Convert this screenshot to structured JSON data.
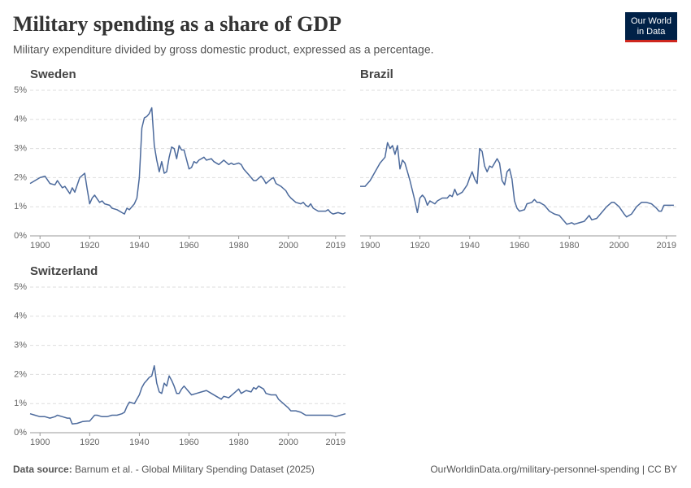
{
  "header": {
    "title": "Military spending as a share of GDP",
    "subtitle": "Military expenditure divided by gross domestic product, expressed as a percentage."
  },
  "logo": [
    "Our World",
    "in Data"
  ],
  "footer": {
    "source_label": "Data source:",
    "source": "Barnum et al. - Global Military Spending Dataset (2025)",
    "url": "OurWorldinData.org/military-personnel-spending | CC BY"
  },
  "chart_data": [
    {
      "type": "line",
      "title": "Sweden",
      "color": "#4c6a9c",
      "grid": true,
      "xlim": [
        1896,
        2023
      ],
      "xticks": [
        1900,
        1920,
        1940,
        1960,
        1980,
        2000,
        2019
      ],
      "ylim": [
        0,
        5
      ],
      "yticks": [
        {
          "value": 0,
          "label": "0%"
        },
        {
          "value": 1,
          "label": "1%"
        },
        {
          "value": 2,
          "label": "2%"
        },
        {
          "value": 3,
          "label": "3%"
        },
        {
          "value": 4,
          "label": "4%"
        },
        {
          "value": 5,
          "label": "5%"
        }
      ],
      "x": [
        1896,
        1898,
        1900,
        1902,
        1904,
        1906,
        1907,
        1909,
        1910,
        1912,
        1913,
        1914,
        1916,
        1918,
        1919,
        1920,
        1921,
        1922,
        1924,
        1925,
        1926,
        1928,
        1929,
        1931,
        1933,
        1934,
        1935,
        1936,
        1938,
        1939,
        1940,
        1941,
        1942,
        1943,
        1944,
        1945,
        1946,
        1947,
        1948,
        1949,
        1950,
        1951,
        1952,
        1953,
        1954,
        1955,
        1956,
        1957,
        1958,
        1960,
        1961,
        1962,
        1963,
        1964,
        1966,
        1967,
        1969,
        1970,
        1972,
        1974,
        1976,
        1977,
        1978,
        1980,
        1981,
        1982,
        1984,
        1986,
        1987,
        1989,
        1990,
        1991,
        1993,
        1994,
        1995,
        1997,
        1999,
        2000,
        2001,
        2003,
        2005,
        2006,
        2007,
        2008,
        2009,
        2010,
        2012,
        2013,
        2015,
        2016,
        2017,
        2018,
        2020,
        2022,
        2023
      ],
      "values": [
        1.8,
        1.9,
        2.0,
        2.05,
        1.8,
        1.75,
        1.9,
        1.65,
        1.7,
        1.45,
        1.65,
        1.5,
        2.0,
        2.15,
        1.6,
        1.1,
        1.3,
        1.4,
        1.15,
        1.2,
        1.1,
        1.05,
        0.95,
        0.9,
        0.8,
        0.75,
        0.95,
        0.9,
        1.1,
        1.3,
        2.0,
        3.7,
        4.05,
        4.1,
        4.2,
        4.4,
        3.1,
        2.6,
        2.2,
        2.55,
        2.15,
        2.2,
        2.7,
        3.05,
        3.0,
        2.65,
        3.1,
        2.95,
        2.95,
        2.3,
        2.35,
        2.55,
        2.5,
        2.6,
        2.7,
        2.6,
        2.65,
        2.55,
        2.45,
        2.6,
        2.45,
        2.5,
        2.45,
        2.5,
        2.45,
        2.3,
        2.1,
        1.9,
        1.9,
        2.05,
        1.95,
        1.8,
        1.95,
        2.0,
        1.8,
        1.7,
        1.55,
        1.4,
        1.3,
        1.15,
        1.1,
        1.15,
        1.05,
        1.0,
        1.1,
        0.95,
        0.85,
        0.85,
        0.85,
        0.9,
        0.8,
        0.75,
        0.8,
        0.75,
        0.8
      ]
    },
    {
      "type": "line",
      "title": "Brazil",
      "color": "#4c6a9c",
      "grid": true,
      "xlim": [
        1896,
        2023
      ],
      "xticks": [
        1900,
        1920,
        1940,
        1960,
        1980,
        2000,
        2019
      ],
      "ylim": [
        0,
        5
      ],
      "yticks": [
        0,
        1,
        2,
        3,
        4,
        5
      ],
      "x": [
        1896,
        1898,
        1900,
        1902,
        1904,
        1906,
        1907,
        1908,
        1909,
        1910,
        1911,
        1912,
        1913,
        1914,
        1915,
        1916,
        1918,
        1919,
        1920,
        1921,
        1922,
        1923,
        1924,
        1926,
        1927,
        1929,
        1931,
        1932,
        1933,
        1934,
        1935,
        1937,
        1939,
        1940,
        1941,
        1942,
        1943,
        1944,
        1945,
        1946,
        1947,
        1948,
        1949,
        1950,
        1951,
        1952,
        1953,
        1954,
        1955,
        1956,
        1957,
        1958,
        1959,
        1960,
        1962,
        1963,
        1965,
        1966,
        1967,
        1968,
        1970,
        1972,
        1974,
        1976,
        1978,
        1979,
        1981,
        1982,
        1984,
        1986,
        1988,
        1989,
        1991,
        1993,
        1995,
        1997,
        1998,
        2000,
        2002,
        2003,
        2005,
        2007,
        2009,
        2011,
        2013,
        2015,
        2016,
        2017,
        2018,
        2020,
        2022
      ],
      "values": [
        1.7,
        1.7,
        1.9,
        2.2,
        2.5,
        2.7,
        3.2,
        3.0,
        3.1,
        2.8,
        3.1,
        2.3,
        2.6,
        2.5,
        2.2,
        1.9,
        1.2,
        0.8,
        1.3,
        1.4,
        1.3,
        1.05,
        1.2,
        1.1,
        1.2,
        1.3,
        1.3,
        1.4,
        1.35,
        1.6,
        1.4,
        1.5,
        1.75,
        2.0,
        2.2,
        1.95,
        1.8,
        3.0,
        2.9,
        2.4,
        2.2,
        2.4,
        2.35,
        2.5,
        2.65,
        2.5,
        1.9,
        1.75,
        2.2,
        2.3,
        1.95,
        1.2,
        0.95,
        0.85,
        0.9,
        1.1,
        1.15,
        1.25,
        1.15,
        1.15,
        1.05,
        0.85,
        0.75,
        0.7,
        0.5,
        0.4,
        0.45,
        0.4,
        0.45,
        0.5,
        0.7,
        0.55,
        0.6,
        0.8,
        1.0,
        1.15,
        1.15,
        1.0,
        0.75,
        0.65,
        0.75,
        1.0,
        1.15,
        1.15,
        1.1,
        0.95,
        0.85,
        0.85,
        1.05,
        1.05,
        1.05
      ]
    },
    {
      "type": "line",
      "title": "Switzerland",
      "color": "#4c6a9c",
      "grid": true,
      "xlim": [
        1896,
        2023
      ],
      "xticks": [
        1900,
        1920,
        1940,
        1960,
        1980,
        2000,
        2019
      ],
      "ylim": [
        0,
        5
      ],
      "yticks": [
        {
          "value": 0,
          "label": "0%"
        },
        {
          "value": 1,
          "label": "1%"
        },
        {
          "value": 2,
          "label": "2%"
        },
        {
          "value": 3,
          "label": "3%"
        },
        {
          "value": 4,
          "label": "4%"
        },
        {
          "value": 5,
          "label": "5%"
        }
      ],
      "x": [
        1896,
        1898,
        1900,
        1902,
        1904,
        1906,
        1907,
        1909,
        1911,
        1912,
        1913,
        1915,
        1917,
        1919,
        1920,
        1922,
        1923,
        1925,
        1927,
        1929,
        1931,
        1933,
        1934,
        1935,
        1936,
        1938,
        1939,
        1940,
        1941,
        1942,
        1943,
        1944,
        1945,
        1946,
        1947,
        1948,
        1949,
        1950,
        1951,
        1952,
        1953,
        1954,
        1955,
        1956,
        1957,
        1958,
        1960,
        1961,
        1963,
        1965,
        1967,
        1969,
        1971,
        1973,
        1974,
        1976,
        1978,
        1980,
        1981,
        1983,
        1985,
        1986,
        1987,
        1988,
        1990,
        1991,
        1993,
        1995,
        1996,
        1998,
        2000,
        2001,
        2003,
        2005,
        2007,
        2009,
        2011,
        2013,
        2015,
        2017,
        2019,
        2021,
        2023
      ],
      "values": [
        0.65,
        0.6,
        0.55,
        0.55,
        0.5,
        0.55,
        0.6,
        0.55,
        0.5,
        0.5,
        0.3,
        0.32,
        0.38,
        0.4,
        0.4,
        0.6,
        0.6,
        0.55,
        0.55,
        0.6,
        0.6,
        0.65,
        0.7,
        0.9,
        1.05,
        1.0,
        1.15,
        1.3,
        1.55,
        1.7,
        1.8,
        1.9,
        1.95,
        2.3,
        1.7,
        1.4,
        1.35,
        1.7,
        1.6,
        1.95,
        1.8,
        1.6,
        1.35,
        1.35,
        1.5,
        1.6,
        1.4,
        1.3,
        1.35,
        1.4,
        1.45,
        1.35,
        1.25,
        1.15,
        1.25,
        1.2,
        1.35,
        1.5,
        1.35,
        1.45,
        1.4,
        1.55,
        1.5,
        1.6,
        1.5,
        1.35,
        1.3,
        1.3,
        1.15,
        1.0,
        0.85,
        0.75,
        0.75,
        0.7,
        0.6,
        0.6,
        0.6,
        0.6,
        0.6,
        0.6,
        0.55,
        0.6,
        0.65
      ]
    }
  ]
}
